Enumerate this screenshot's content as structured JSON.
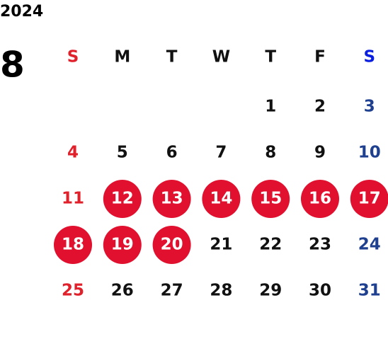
{
  "calendar": {
    "year": "2024",
    "month": "8",
    "weekdays": [
      "S",
      "M",
      "T",
      "W",
      "T",
      "F",
      "S"
    ],
    "weeks": [
      [
        null,
        null,
        null,
        null,
        1,
        2,
        3
      ],
      [
        4,
        5,
        6,
        7,
        8,
        9,
        10
      ],
      [
        11,
        12,
        13,
        14,
        15,
        16,
        17
      ],
      [
        18,
        19,
        20,
        21,
        22,
        23,
        24
      ],
      [
        25,
        26,
        27,
        28,
        29,
        30,
        31
      ]
    ],
    "highlighted_days": [
      12,
      13,
      14,
      15,
      16,
      17,
      18,
      19,
      20
    ],
    "colors": {
      "text": "#111111",
      "sunday": "#e0202a",
      "saturday_header": "#0a1ee0",
      "saturday": "#1f3f8f",
      "highlight": "#e0102e",
      "highlight_text": "#ffffff"
    }
  }
}
